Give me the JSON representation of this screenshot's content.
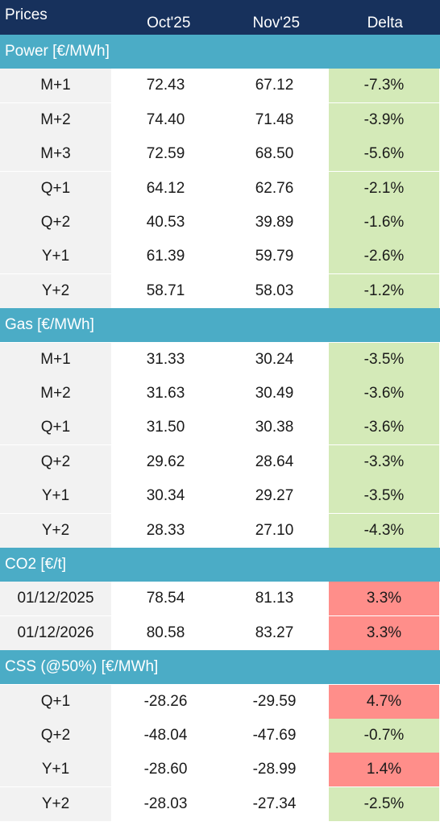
{
  "header": {
    "title": "Prices",
    "col1": "Oct'25",
    "col2": "Nov'25",
    "col3": "Delta"
  },
  "sections": [
    {
      "title": "Power [€/MWh]",
      "rows": [
        {
          "label": "M+1",
          "oct": "72.43",
          "nov": "67.12",
          "delta": "-7.3%",
          "status": "down"
        },
        {
          "label": "M+2",
          "oct": "74.40",
          "nov": "71.48",
          "delta": "-3.9%",
          "status": "down"
        },
        {
          "label": "M+3",
          "oct": "72.59",
          "nov": "68.50",
          "delta": "-5.6%",
          "status": "down"
        },
        {
          "label": "Q+1",
          "oct": "64.12",
          "nov": "62.76",
          "delta": "-2.1%",
          "status": "down"
        },
        {
          "label": "Q+2",
          "oct": "40.53",
          "nov": "39.89",
          "delta": "-1.6%",
          "status": "down"
        },
        {
          "label": "Y+1",
          "oct": "61.39",
          "nov": "59.79",
          "delta": "-2.6%",
          "status": "down"
        },
        {
          "label": "Y+2",
          "oct": "58.71",
          "nov": "58.03",
          "delta": "-1.2%",
          "status": "down"
        }
      ]
    },
    {
      "title": "Gas [€/MWh]",
      "rows": [
        {
          "label": "M+1",
          "oct": "31.33",
          "nov": "30.24",
          "delta": "-3.5%",
          "status": "down"
        },
        {
          "label": "M+2",
          "oct": "31.63",
          "nov": "30.49",
          "delta": "-3.6%",
          "status": "down"
        },
        {
          "label": "Q+1",
          "oct": "31.50",
          "nov": "30.38",
          "delta": "-3.6%",
          "status": "down"
        },
        {
          "label": "Q+2",
          "oct": "29.62",
          "nov": "28.64",
          "delta": "-3.3%",
          "status": "down"
        },
        {
          "label": "Y+1",
          "oct": "30.34",
          "nov": "29.27",
          "delta": "-3.5%",
          "status": "down"
        },
        {
          "label": "Y+2",
          "oct": "28.33",
          "nov": "27.10",
          "delta": "-4.3%",
          "status": "down"
        }
      ]
    },
    {
      "title": "CO2 [€/t]",
      "rows": [
        {
          "label": "01/12/2025",
          "oct": "78.54",
          "nov": "81.13",
          "delta": "3.3%",
          "status": "up"
        },
        {
          "label": "01/12/2026",
          "oct": "80.58",
          "nov": "83.27",
          "delta": "3.3%",
          "status": "up"
        }
      ]
    },
    {
      "title": "CSS (@50%) [€/MWh]",
      "rows": [
        {
          "label": "Q+1",
          "oct": "-28.26",
          "nov": "-29.59",
          "delta": "4.7%",
          "status": "up"
        },
        {
          "label": "Q+2",
          "oct": "-48.04",
          "nov": "-47.69",
          "delta": "-0.7%",
          "status": "down"
        },
        {
          "label": "Y+1",
          "oct": "-28.60",
          "nov": "-28.99",
          "delta": "1.4%",
          "status": "up"
        },
        {
          "label": "Y+2",
          "oct": "-28.03",
          "nov": "-27.34",
          "delta": "-2.5%",
          "status": "down"
        }
      ]
    }
  ],
  "colors": {
    "header_bg": "#17315c",
    "section_bg": "#4bacc6",
    "label_bg": "#f2f2f2",
    "delta_down_bg": "#d4eab8",
    "delta_up_bg": "#ff8e8a"
  }
}
